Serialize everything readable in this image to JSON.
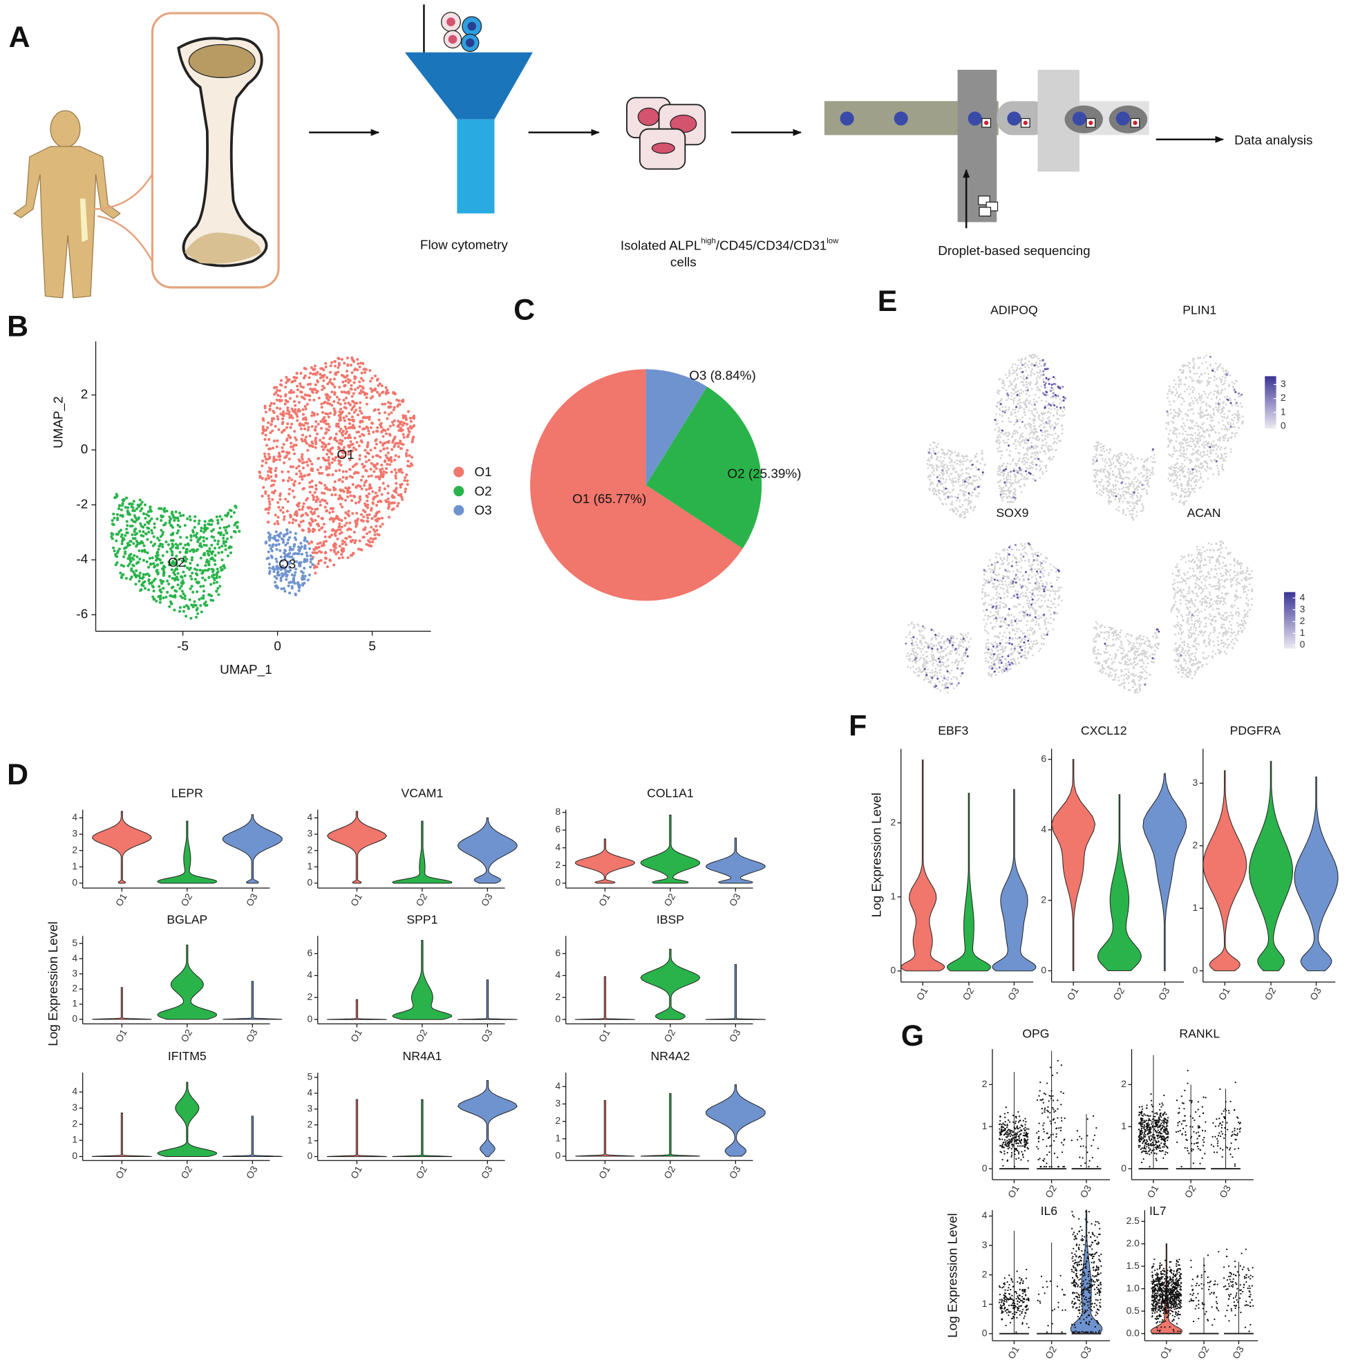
{
  "panel_labels": [
    "A",
    "B",
    "C",
    "D",
    "E",
    "F",
    "G"
  ],
  "workflow": {
    "flow": "Flow cytometry",
    "isolated": {
      "parts": [
        "Isolated ALPL",
        "high",
        "/CD45/CD34/CD31",
        "low"
      ],
      "line2": "cells"
    },
    "droplet": "Droplet-based sequencing",
    "analysis": "Data analysis"
  },
  "umap": {
    "type": "scatter",
    "xlabel": "UMAP_1",
    "ylabel": "UMAP_2",
    "xlim": [
      -9.6,
      8.1
    ],
    "ylim": [
      -6.6,
      3.95
    ],
    "xticks": [
      -5,
      0,
      5
    ],
    "yticks": [
      2,
      0,
      -2,
      -4,
      -6
    ],
    "clusters": [
      "O1",
      "O2",
      "O3"
    ],
    "colors": [
      "#f1766c",
      "#2ab34a",
      "#6f93cf"
    ]
  },
  "pie": {
    "type": "pie",
    "categories": [
      "O1",
      "O2",
      "O3"
    ],
    "values": [
      65.77,
      25.39,
      8.84
    ],
    "value_labels": [
      "O1 (65.77%)",
      "O2 (25.39%)",
      "O3 (8.84%)"
    ],
    "colors": [
      "#f1766c",
      "#2ab34a",
      "#6f93cf"
    ]
  },
  "features": {
    "genes": [
      "ADIPOQ",
      "PLIN1",
      "SOX9",
      "ACAN"
    ],
    "colorbars": [
      {
        "ylim": [
          -0.15,
          3.6
        ],
        "ticks": [
          0,
          1,
          2,
          3
        ]
      },
      {
        "ylim": [
          -0.3,
          4.5
        ],
        "ticks": [
          0,
          1,
          2,
          3,
          4
        ]
      }
    ]
  },
  "violins_d": {
    "type": "violin",
    "ylabel": "Log Expression Level",
    "categories": [
      "O1",
      "O2",
      "O3"
    ],
    "plots": [
      {
        "title": "LEPR",
        "ylim": [
          -0.3,
          4.5
        ],
        "yticks": [
          0,
          1,
          2,
          3,
          4
        ]
      },
      {
        "title": "VCAM1",
        "ylim": [
          -0.3,
          4.5
        ],
        "yticks": [
          0,
          1,
          2,
          3,
          4
        ]
      },
      {
        "title": "COL1A1",
        "ylim": [
          -0.55,
          8.3
        ],
        "yticks": [
          0,
          2,
          4,
          6,
          8
        ]
      },
      {
        "title": "BGLAP",
        "ylim": [
          -0.3,
          5.5
        ],
        "yticks": [
          0,
          1,
          2,
          3,
          4,
          5
        ]
      },
      {
        "title": "SPP1",
        "ylim": [
          -0.4,
          7.6
        ],
        "yticks": [
          0,
          2,
          4,
          6
        ]
      },
      {
        "title": "IBSP",
        "ylim": [
          -0.4,
          7.6
        ],
        "yticks": [
          0,
          2,
          4,
          6
        ]
      },
      {
        "title": "IFITM5",
        "ylim": [
          -0.25,
          5.2
        ],
        "yticks": [
          0,
          1,
          2,
          3,
          4
        ]
      },
      {
        "title": "NR4A1",
        "ylim": [
          -0.25,
          5.3
        ],
        "yticks": [
          0,
          1,
          2,
          3,
          4,
          5
        ]
      },
      {
        "title": "NR4A2",
        "ylim": [
          -0.25,
          4.8
        ],
        "yticks": [
          0,
          1,
          2,
          3,
          4
        ]
      }
    ]
  },
  "violins_f": {
    "type": "violin",
    "ylabel": "Log Expression Level",
    "categories": [
      "O1",
      "O2",
      "O3"
    ],
    "plots": [
      {
        "title": "EBF3",
        "ylim": [
          -0.15,
          3.0
        ],
        "yticks": [
          0,
          1,
          2
        ]
      },
      {
        "title": "CXCL12",
        "ylim": [
          -0.32,
          6.3
        ],
        "yticks": [
          0,
          2,
          4,
          6
        ]
      },
      {
        "title": "PDGFRA",
        "ylim": [
          -0.18,
          3.55
        ],
        "yticks": [
          0,
          1,
          2,
          3
        ]
      }
    ]
  },
  "expression_g": {
    "type": "violin",
    "ylabel": "Log Expression Level",
    "categories": [
      "O1",
      "O2",
      "O3"
    ],
    "plots": [
      {
        "title": "OPG",
        "ylim": [
          -0.26,
          2.84
        ],
        "yticks": [
          0,
          1,
          2
        ]
      },
      {
        "title": "RANKL",
        "ylim": [
          -0.26,
          2.84
        ],
        "yticks": [
          0,
          1,
          2
        ]
      },
      {
        "title": "IL6",
        "ylim": [
          -0.24,
          4.2
        ],
        "yticks": [
          0,
          1,
          2,
          3,
          4
        ]
      },
      {
        "title": "IL7",
        "ylim": [
          -0.16,
          2.75
        ],
        "yticks": [
          {
            "value": 0,
            "label": "0.0"
          },
          {
            "value": 0.5,
            "label": "0.5"
          },
          {
            "value": 1,
            "label": "1.0"
          },
          {
            "value": 1.5,
            "label": "1.5"
          },
          {
            "value": 2,
            "label": "2.0"
          },
          {
            "value": 2.5,
            "label": "2.5"
          }
        ]
      }
    ]
  }
}
